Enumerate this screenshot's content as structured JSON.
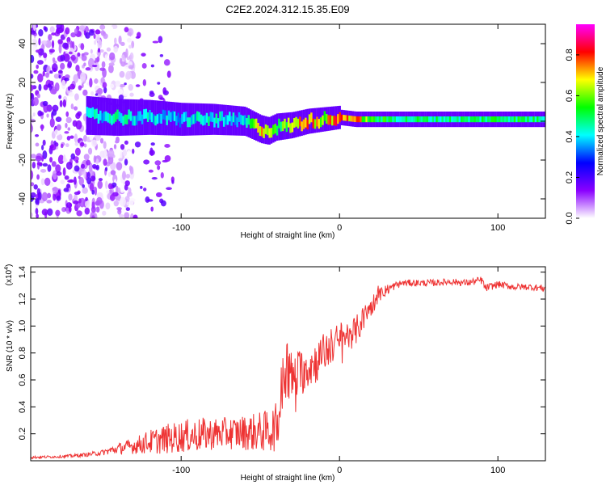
{
  "title": "C2E2.2024.312.15.35.E09",
  "chart_data": [
    {
      "type": "heatmap",
      "xlabel": "Height of straight line (km)",
      "ylabel": "Frequency (Hz)",
      "xlim": [
        -195,
        130
      ],
      "ylim": [
        -50,
        50
      ],
      "x_ticks": [
        -100,
        0,
        100
      ],
      "x_tick_labels": [
        "-100",
        "0",
        "100"
      ],
      "y_ticks": [
        -40,
        -20,
        0,
        20,
        40
      ],
      "y_tick_labels": [
        "-40",
        "-20",
        "0",
        "20",
        "40"
      ],
      "colorbar": {
        "label": "Normalized spectral amplitude",
        "range": [
          0,
          0.95
        ],
        "ticks": [
          0.0,
          0.2,
          0.4,
          0.6,
          0.8
        ],
        "tick_labels": [
          "0.0",
          "0.2",
          "0.4",
          "0.6",
          "0.8"
        ],
        "colors": [
          "#ffffff",
          "#8a00ff",
          "#0000ff",
          "#00ffff",
          "#00ff00",
          "#ffff00",
          "#ff0000",
          "#ff00ff"
        ]
      },
      "ridge": {
        "x": [
          -160,
          -140,
          -120,
          -100,
          -80,
          -60,
          -50,
          -45,
          -40,
          -30,
          -20,
          -10,
          0,
          10,
          20,
          40,
          60,
          80,
          100,
          130
        ],
        "freq": [
          3,
          2,
          2,
          1,
          1,
          0,
          -4,
          -5,
          -3,
          -2,
          0,
          1,
          2,
          1,
          1,
          1,
          1,
          1,
          1,
          1
        ],
        "amplitude": [
          0.45,
          0.5,
          0.45,
          0.45,
          0.5,
          0.45,
          0.85,
          0.7,
          0.55,
          0.75,
          0.85,
          0.75,
          0.9,
          0.85,
          0.6,
          0.55,
          0.55,
          0.55,
          0.6,
          0.55
        ]
      },
      "noise_region_x": [
        -195,
        -140
      ]
    },
    {
      "type": "line",
      "xlabel": "Height of straight line (km)",
      "ylabel": "SNR (10 * v/v)",
      "y_scale_note": "(x10",
      "y_scale_exponent": "4",
      "xlim": [
        -195,
        130
      ],
      "ylim": [
        0,
        14400
      ],
      "x_ticks": [
        -100,
        0,
        100
      ],
      "x_tick_labels": [
        "-100",
        "0",
        "100"
      ],
      "y_ticks": [
        2000,
        4000,
        6000,
        8000,
        10000,
        12000,
        14000
      ],
      "y_tick_labels": [
        "0.2",
        "0.4",
        "0.6",
        "0.8",
        "1.0",
        "1.2",
        "1.4"
      ],
      "series": [
        {
          "color": "#ee3333",
          "x": [
            -195,
            -180,
            -170,
            -160,
            -150,
            -140,
            -130,
            -120,
            -110,
            -100,
            -90,
            -80,
            -70,
            -60,
            -50,
            -45,
            -40,
            -38,
            -35,
            -33,
            -30,
            -25,
            -20,
            -15,
            -10,
            -5,
            0,
            5,
            10,
            15,
            20,
            25,
            30,
            35,
            40,
            50,
            60,
            70,
            80,
            90,
            92,
            100,
            110,
            120,
            130
          ],
          "y": [
            250,
            300,
            350,
            450,
            600,
            900,
            1100,
            1400,
            1600,
            1800,
            1900,
            2000,
            2050,
            2100,
            2150,
            2200,
            2500,
            3500,
            6500,
            7000,
            6000,
            6500,
            7000,
            7300,
            8000,
            8500,
            9000,
            9300,
            9600,
            10500,
            11500,
            12300,
            12700,
            13000,
            13200,
            13200,
            13200,
            13300,
            13200,
            13400,
            12800,
            13100,
            12900,
            12900,
            12800
          ],
          "noise": [
            100,
            100,
            120,
            150,
            200,
            400,
            600,
            900,
            1100,
            1200,
            1300,
            1200,
            1200,
            1300,
            1500,
            1600,
            1800,
            2500,
            2500,
            2500,
            2000,
            1800,
            1700,
            1600,
            1500,
            1400,
            1300,
            1200,
            1100,
            1000,
            800,
            500,
            400,
            300,
            250,
            250,
            250,
            250,
            250,
            300,
            300,
            250,
            250,
            250,
            250
          ]
        }
      ]
    }
  ]
}
